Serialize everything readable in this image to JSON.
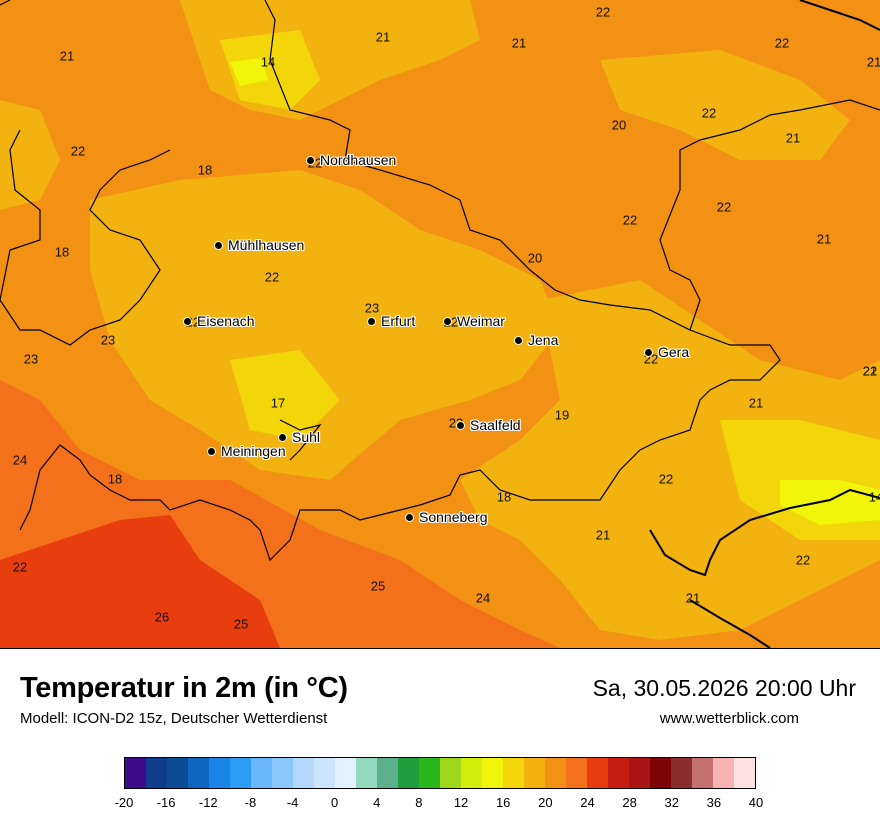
{
  "header": {
    "title": "Temperatur in 2m (in °C)",
    "model": "Modell: ICON-D2 15z, Deutscher Wetterdienst",
    "datetime": "Sa, 30.05.2026 20:00 Uhr",
    "source": "www.wetterblick.com"
  },
  "map": {
    "cities": [
      {
        "name": "Nordhausen",
        "icon": "city-dot-icon"
      },
      {
        "name": "Mühlhausen",
        "icon": "city-dot-icon"
      },
      {
        "name": "Eisenach",
        "icon": "city-dot-icon"
      },
      {
        "name": "Erfurt",
        "icon": "city-dot-icon"
      },
      {
        "name": "Weimar",
        "icon": "city-dot-icon"
      },
      {
        "name": "Jena",
        "icon": "city-dot-icon"
      },
      {
        "name": "Gera",
        "icon": "city-dot-icon"
      },
      {
        "name": "Saalfeld",
        "icon": "city-dot-icon"
      },
      {
        "name": "Suhl",
        "icon": "city-dot-icon"
      },
      {
        "name": "Meiningen",
        "icon": "city-dot-icon"
      },
      {
        "name": "Sonneberg",
        "icon": "city-dot-icon"
      }
    ],
    "temperatures": [
      "22",
      "21",
      "21",
      "22",
      "14",
      "21",
      "21",
      "22",
      "20",
      "22",
      "21",
      "18",
      "22",
      "22",
      "22",
      "18",
      "22",
      "20",
      "21",
      "23",
      "22",
      "23",
      "22",
      "22",
      "23",
      "21",
      "17",
      "19",
      "21",
      "24",
      "23",
      "18",
      "22",
      "18",
      "21",
      "22",
      "22",
      "25",
      "24",
      "21",
      "26",
      "25",
      "14",
      "22"
    ]
  },
  "legend": {
    "colors": [
      "#3d0a8c",
      "#0f3d8c",
      "#0b4d94",
      "#0f66bf",
      "#1a85e6",
      "#2d9cf5",
      "#6bb6fa",
      "#8cc7fb",
      "#b3d8fc",
      "#cce4fd",
      "#e3f0fe",
      "#94d9bf",
      "#5cb08c",
      "#1e9e3d",
      "#28b81e",
      "#9ed61a",
      "#d4ed0a",
      "#f0f50a",
      "#f2d60a",
      "#f2b20f",
      "#f29114",
      "#f2711a",
      "#e83d0f",
      "#c41e14",
      "#ab1414",
      "#7d0505",
      "#8c2d2d",
      "#c27070",
      "#f5b3b3",
      "#ffe0e0"
    ],
    "ticks": [
      "-20",
      "-16",
      "-12",
      "-8",
      "-4",
      "0",
      "4",
      "8",
      "12",
      "16",
      "20",
      "24",
      "28",
      "32",
      "36",
      "40"
    ]
  }
}
